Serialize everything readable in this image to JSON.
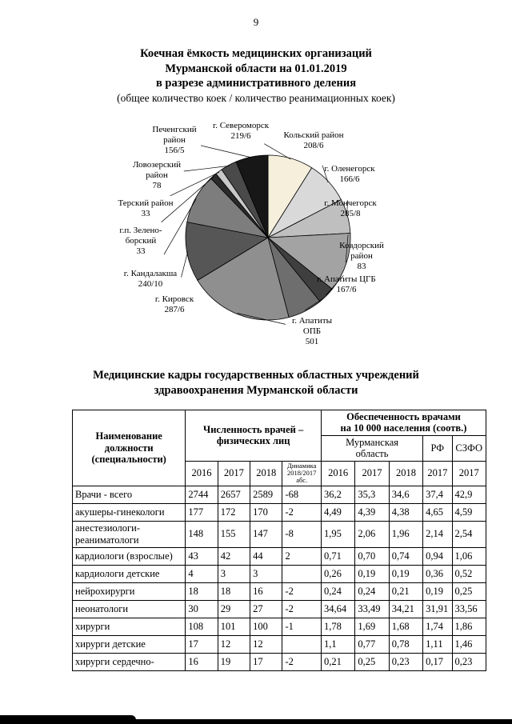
{
  "page": {
    "number": "9"
  },
  "chart_title": {
    "line1": "Коечная ёмкость медицинских организаций",
    "line2": "Мурманской области на 01.01.2019",
    "line3": "в разрезе административного деления",
    "subtitle": "(общее количество коек / количество реанимационных коек)"
  },
  "chart_data": {
    "type": "pie",
    "title": "Коечная ёмкость медицинских организаций Мурманской области на 01.01.2019 в разрезе административного деления (общее количество коек / количество реанимационных коек)",
    "legend_position": "callout-labels",
    "slices": [
      {
        "name": "г. Североморск",
        "value": 219,
        "label_lines": [
          "г. Североморск",
          "219/6"
        ],
        "color": "#f5efdc"
      },
      {
        "name": "Кольский район",
        "value": 208,
        "label_lines": [
          "Кольский район",
          "208/6"
        ],
        "color": "#d9d9d9"
      },
      {
        "name": "г. Оленегорск",
        "value": 166,
        "label_lines": [
          "г. Оленегорск",
          "166/6"
        ],
        "color": "#bfbfbf"
      },
      {
        "name": "г. Мончегорск",
        "value": 285,
        "label_lines": [
          "г. Мончегорск",
          "285/8"
        ],
        "color": "#a3a3a3"
      },
      {
        "name": "Ковдорский район",
        "value": 83,
        "label_lines": [
          "Ковдорский",
          "район",
          "83"
        ],
        "color": "#3f3f3f"
      },
      {
        "name": "г. Апатиты ЦГБ",
        "value": 167,
        "label_lines": [
          "г. Апатиты ЦГБ",
          "167/6"
        ],
        "color": "#6e6e6e"
      },
      {
        "name": "г. Апатиты ОПБ",
        "value": 501,
        "label_lines": [
          "г. Апатиты",
          "ОПБ",
          "501"
        ],
        "color": "#8f8f8f"
      },
      {
        "name": "г. Кировск",
        "value": 287,
        "label_lines": [
          "г. Кировск",
          "287/6"
        ],
        "color": "#565656"
      },
      {
        "name": "г. Кандалакша",
        "value": 240,
        "label_lines": [
          "г. Кандалакша",
          "240/10"
        ],
        "color": "#7d7d7d"
      },
      {
        "name": "г.п. Зеленоборский",
        "value": 33,
        "label_lines": [
          "г.п. Зелено-",
          "борский",
          "33"
        ],
        "color": "#2b2b2b"
      },
      {
        "name": "Терский район",
        "value": 33,
        "label_lines": [
          "Терский район",
          "33"
        ],
        "color": "#c9c9c9"
      },
      {
        "name": "Ловозерский район",
        "value": 78,
        "label_lines": [
          "Ловозерский",
          "район",
          "78"
        ],
        "color": "#4a4a4a"
      },
      {
        "name": "Печенгский район",
        "value": 156,
        "label_lines": [
          "Печенгский",
          "район",
          "156/5"
        ],
        "color": "#171717"
      }
    ]
  },
  "table_title": {
    "line1": "Медицинские кадры государственных областных учреждений",
    "line2": "здравоохранения Мурманской области"
  },
  "table": {
    "header": {
      "name": "Наименование\nдолжности\n(специальности)",
      "group_counts": "Численность врачей –\nфизических лиц",
      "group_provision": "Обеспеченность врачами\nна 10 000 населения (соотв.)",
      "region": "Мурманская\nобласть",
      "rf": "РФ",
      "szfo": "СЗФО",
      "years_counts": [
        "2016",
        "2017",
        "2018"
      ],
      "dynamics": "Динамика\n2018/2017\nабс.",
      "years_region": [
        "2016",
        "2017",
        "2018"
      ],
      "year_rf": "2017",
      "year_szfo": "2017"
    },
    "rows": [
      {
        "name": "Врачи - всего",
        "values": [
          "2744",
          "2657",
          "2589",
          "-68",
          "36,2",
          "35,3",
          "34,6",
          "37,4",
          "42,9"
        ]
      },
      {
        "name": "акушеры-гинекологи",
        "values": [
          "177",
          "172",
          "170",
          "-2",
          "4,49",
          "4,39",
          "4,38",
          "4,65",
          "4,59"
        ]
      },
      {
        "name": "анестезиологи-реаниматологи",
        "values": [
          "148",
          "155",
          "147",
          "-8",
          "1,95",
          "2,06",
          "1,96",
          "2,14",
          "2,54"
        ]
      },
      {
        "name": "кардиологи (взрослые)",
        "values": [
          "43",
          "42",
          "44",
          "2",
          "0,71",
          "0,70",
          "0,74",
          "0,94",
          "1,06"
        ]
      },
      {
        "name": "кардиологи детские",
        "values": [
          "4",
          "3",
          "3",
          "",
          "0,26",
          "0,19",
          "0,19",
          "0,36",
          "0,52"
        ]
      },
      {
        "name": "нейрохирурги",
        "values": [
          "18",
          "18",
          "16",
          "-2",
          "0,24",
          "0,24",
          "0,21",
          "0,19",
          "0,25"
        ]
      },
      {
        "name": "неонатологи",
        "values": [
          "30",
          "29",
          "27",
          "-2",
          "34,64",
          "33,49",
          "34,21",
          "31,91",
          "33,56"
        ]
      },
      {
        "name": "хирурги",
        "values": [
          "108",
          "101",
          "100",
          "-1",
          "1,78",
          "1,69",
          "1,68",
          "1,74",
          "1,86"
        ]
      },
      {
        "name": "хирурги детские",
        "values": [
          "17",
          "12",
          "12",
          "",
          "1,1",
          "0,77",
          "0,78",
          "1,11",
          "1,46"
        ]
      },
      {
        "name": "хирурги сердечно-",
        "values": [
          "16",
          "19",
          "17",
          "-2",
          "0,21",
          "0,25",
          "0,23",
          "0,17",
          "0,23"
        ]
      }
    ]
  }
}
